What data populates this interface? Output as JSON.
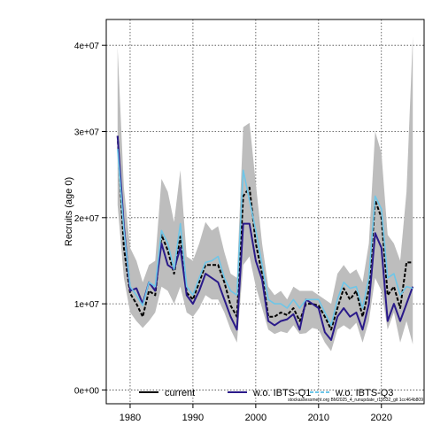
{
  "chart_data": {
    "type": "line",
    "title": "",
    "xlabel": "",
    "ylabel": "Recruits (age 0)",
    "xlim": [
      1976.2,
      2026.8
    ],
    "ylim": [
      -1600000,
      43000000
    ],
    "x_ticks": [
      1980,
      1990,
      2000,
      2010,
      2020
    ],
    "x_tick_labels": [
      "1980",
      "1990",
      "2000",
      "2010",
      "2020"
    ],
    "y_ticks": [
      0,
      10000000,
      20000000,
      30000000,
      40000000
    ],
    "y_tick_labels": [
      "0e+00",
      "1e+07",
      "2e+07",
      "3e+07",
      "4e+07"
    ],
    "grid": true,
    "legend_position": "bottom",
    "source_note": "stockassessment.org BM2025_4_runupdate_r19532_git 1cc464b809",
    "x": [
      1978,
      1979,
      1980,
      1981,
      1982,
      1983,
      1984,
      1985,
      1986,
      1987,
      1988,
      1989,
      1990,
      1991,
      1992,
      1993,
      1994,
      1995,
      1996,
      1997,
      1998,
      1999,
      2000,
      2001,
      2002,
      2003,
      2004,
      2005,
      2006,
      2007,
      2008,
      2009,
      2010,
      2011,
      2012,
      2013,
      2014,
      2015,
      2016,
      2017,
      2018,
      2019,
      2020,
      2021,
      2022,
      2023,
      2024,
      2025
    ],
    "confidence_band": {
      "upper": [
        39800000,
        23500000,
        16500000,
        15000000,
        12500000,
        14500000,
        15000000,
        24500000,
        23000000,
        19500000,
        25500000,
        15500000,
        15000000,
        17000000,
        19500000,
        18500000,
        19000000,
        16000000,
        13500000,
        13000000,
        30500000,
        31000000,
        24000000,
        17000000,
        12000000,
        11000000,
        11500000,
        10500000,
        12000000,
        11500000,
        11500000,
        11500000,
        11000000,
        10500000,
        10000000,
        13500000,
        14500000,
        13500000,
        14000000,
        12500000,
        17000000,
        30000000,
        27500000,
        18000000,
        17000000,
        15000000,
        23000000,
        41000000
      ],
      "lower": [
        21500000,
        13000000,
        9000000,
        8000000,
        7200000,
        8000000,
        9000000,
        12000000,
        11500000,
        10000000,
        12000000,
        9000000,
        8500000,
        9500000,
        11000000,
        10500000,
        10500000,
        9000000,
        7000000,
        5500000,
        14500000,
        15500000,
        12000000,
        9500000,
        7000000,
        6500000,
        6800000,
        6600000,
        7500000,
        6500000,
        6600000,
        7200000,
        7000000,
        5500000,
        4500000,
        7000000,
        7500000,
        7000000,
        7800000,
        5500000,
        8000000,
        13000000,
        11500000,
        7000000,
        9000000,
        5500000,
        8000000,
        5300000
      ]
    },
    "series": [
      {
        "name": "current",
        "color": "#000000",
        "values": [
          29500000,
          16500000,
          11200000,
          10000000,
          8500000,
          11500000,
          11000000,
          18000000,
          16200000,
          13500000,
          17800000,
          11300000,
          10500000,
          12500000,
          14500000,
          14500000,
          14500000,
          12500000,
          9800000,
          8500000,
          22500000,
          23500000,
          17000000,
          13500000,
          8500000,
          8500000,
          9000000,
          8700000,
          9500000,
          8000000,
          10000000,
          10000000,
          9800000,
          8500000,
          7000000,
          9500000,
          11800000,
          10500000,
          11500000,
          8500000,
          11700000,
          22000000,
          20000000,
          11000000,
          12000000,
          9500000,
          14800000,
          14800000
        ]
      },
      {
        "name": "w.o. IBTS-Q1",
        "color": "#2a1a8a",
        "values": [
          29500000,
          19000000,
          11500000,
          11800000,
          10000000,
          12500000,
          11500000,
          17000000,
          14500000,
          14000000,
          16500000,
          11000000,
          10000000,
          11500000,
          13500000,
          13000000,
          12500000,
          10500000,
          8500000,
          7000000,
          19300000,
          19300000,
          15000000,
          12800000,
          8000000,
          7500000,
          8000000,
          8200000,
          8800000,
          7000000,
          10500000,
          10000000,
          9500000,
          6700000,
          5800000,
          8500000,
          9500000,
          8500000,
          9000000,
          7000000,
          10000000,
          18200000,
          16500000,
          8000000,
          10000000,
          8000000,
          10000000,
          12000000
        ]
      },
      {
        "name": "w.o. IBTS-Q3",
        "color": "#6ec6e8",
        "values": [
          28000000,
          18500000,
          12000000,
          11000000,
          9800000,
          12500000,
          12000000,
          18500000,
          17000000,
          14000000,
          19300000,
          12000000,
          11000000,
          13000000,
          14800000,
          15000000,
          15500000,
          13000000,
          11500000,
          11000000,
          25500000,
          22000000,
          18500000,
          14500000,
          10500000,
          10000000,
          10000000,
          9500000,
          10500000,
          9500000,
          10500000,
          10500000,
          10500000,
          9000000,
          7500000,
          10500000,
          12500000,
          11800000,
          12000000,
          9500000,
          13000000,
          22500000,
          21000000,
          13000000,
          13500000,
          11000000,
          12000000,
          11800000
        ]
      }
    ]
  }
}
